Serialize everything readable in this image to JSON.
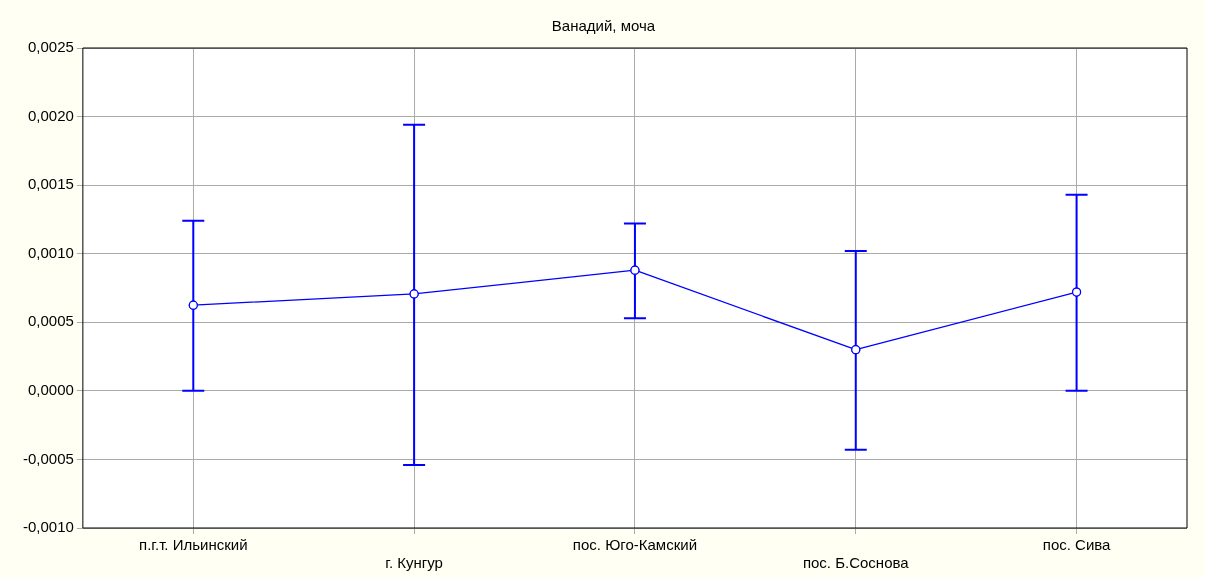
{
  "chart_data": {
    "type": "line",
    "title": "Ванадий, моча",
    "categories": [
      "п.г.т. Ильинский",
      "г. Кунгур",
      "пос. Юго-Камский",
      "пос. Б.Соснова",
      "пос. Сива"
    ],
    "series": [
      {
        "color": "#0000ff",
        "values": [
          0.000625,
          0.000707,
          0.00088,
          0.0003,
          0.00072
        ],
        "errors": [
          [
            0.0,
            0.00124
          ],
          [
            -0.00054,
            0.00194
          ],
          [
            0.00053,
            0.00122
          ],
          [
            -0.00043,
            0.00102
          ],
          [
            0.0,
            0.00143
          ]
        ]
      }
    ],
    "ylim": [
      -0.001,
      0.0025
    ],
    "yticks": [
      {
        "value": -0.001,
        "label": "-0,0010"
      },
      {
        "value": -0.0005,
        "label": "-0,0005"
      },
      {
        "value": 0,
        "label": "0,0000"
      },
      {
        "value": 0.0005,
        "label": "0,0005"
      },
      {
        "value": 0.001,
        "label": "0,0010"
      },
      {
        "value": 0.0015,
        "label": "0,0015"
      },
      {
        "value": 0.002,
        "label": "0,0020"
      },
      {
        "value": 0.0025,
        "label": "0,0025"
      }
    ],
    "grid": true,
    "legend": false,
    "marker": "circle",
    "line_style": "solid"
  }
}
